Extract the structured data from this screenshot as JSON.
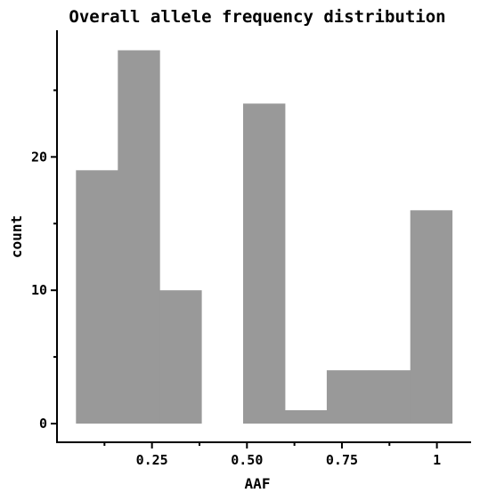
{
  "chart_data": {
    "type": "bar",
    "title": "Overall allele frequency distribution",
    "xlabel": "AAF",
    "ylabel": "count",
    "bins": [
      {
        "x0": 0.05,
        "x1": 0.16,
        "count": 19
      },
      {
        "x0": 0.16,
        "x1": 0.27,
        "count": 28
      },
      {
        "x0": 0.27,
        "x1": 0.38,
        "count": 10
      },
      {
        "x0": 0.49,
        "x1": 0.6,
        "count": 24
      },
      {
        "x0": 0.6,
        "x1": 0.71,
        "count": 1
      },
      {
        "x0": 0.71,
        "x1": 0.82,
        "count": 4
      },
      {
        "x0": 0.82,
        "x1": 0.93,
        "count": 4
      },
      {
        "x0": 0.93,
        "x1": 1.04,
        "count": 16
      }
    ],
    "xlim": [
      0.0,
      1.09
    ],
    "ylim": [
      -1.4,
      29.5
    ],
    "xticks": [
      {
        "value": 0.25,
        "label": "0.25"
      },
      {
        "value": 0.5,
        "label": "0.50"
      },
      {
        "value": 0.75,
        "label": "0.75"
      },
      {
        "value": 1.0,
        "label": "1"
      }
    ],
    "yticks": [
      {
        "value": 0,
        "label": "0"
      },
      {
        "value": 10,
        "label": "10"
      },
      {
        "value": 20,
        "label": "20"
      }
    ],
    "bar_color": "#999999",
    "grid": false
  }
}
